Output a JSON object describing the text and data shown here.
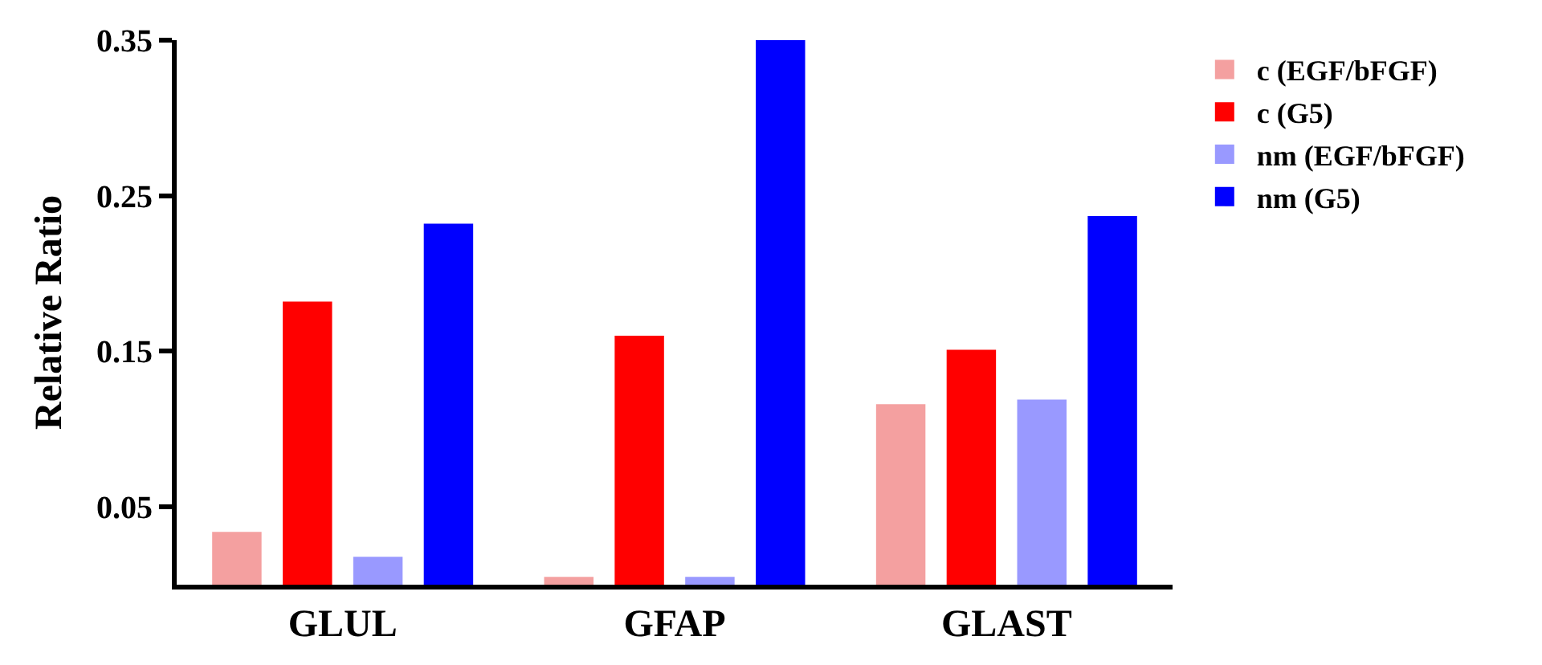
{
  "chart_data": {
    "type": "bar",
    "ylabel": "Relative Ratio",
    "categories": [
      "GLUL",
      "GFAP",
      "GLAST"
    ],
    "series": [
      {
        "name": "c (EGF/bFGF)",
        "color": "#f4a0a0",
        "values": [
          0.034,
          0.005,
          0.116
        ]
      },
      {
        "name": "c (G5)",
        "color": "#ff0000",
        "values": [
          0.182,
          0.16,
          0.151
        ]
      },
      {
        "name": "nm (EGF/bFGF)",
        "color": "#9999ff",
        "values": [
          0.018,
          0.005,
          0.119
        ]
      },
      {
        "name": "nm (G5)",
        "color": "#0000ff",
        "values": [
          0.232,
          0.35,
          0.237
        ]
      }
    ],
    "ylim": [
      0,
      0.35
    ],
    "yticks": [
      0.05,
      0.15,
      0.25,
      0.35
    ],
    "legend": "top right"
  }
}
